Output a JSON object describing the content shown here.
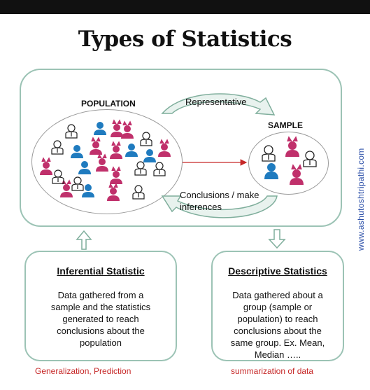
{
  "title": "Types of Statistics",
  "population_label": "POPULATION",
  "sample_label": "SAMPLE",
  "arrow_top_label": "Representative",
  "arrow_bottom_label_line1": "Conclusions / make",
  "arrow_bottom_label_line2": "inferences",
  "inferential": {
    "heading": "Inferential Statistic",
    "body": "Data gathered from a sample and the statistics generated to reach conclusions about the population",
    "caption": "Generalization, Prediction"
  },
  "descriptive": {
    "heading": "Descriptive Statistics",
    "body": "Data gathered about a group (sample or population) to reach conclusions about the same group. Ex. Mean, Median …..",
    "caption": "summarization of data"
  },
  "watermark": "www.ashutoshtripathi.com",
  "colors": {
    "box_border": "#9cc3b5",
    "blue": "#1f7bbf",
    "pink": "#c0306b",
    "red_caption": "#c62828",
    "watermark": "#2b4fa8"
  },
  "icons": {
    "figure_blue": "person-icon",
    "figure_pink": "person-horned-icon",
    "figure_outline": "person-tie-icon"
  }
}
